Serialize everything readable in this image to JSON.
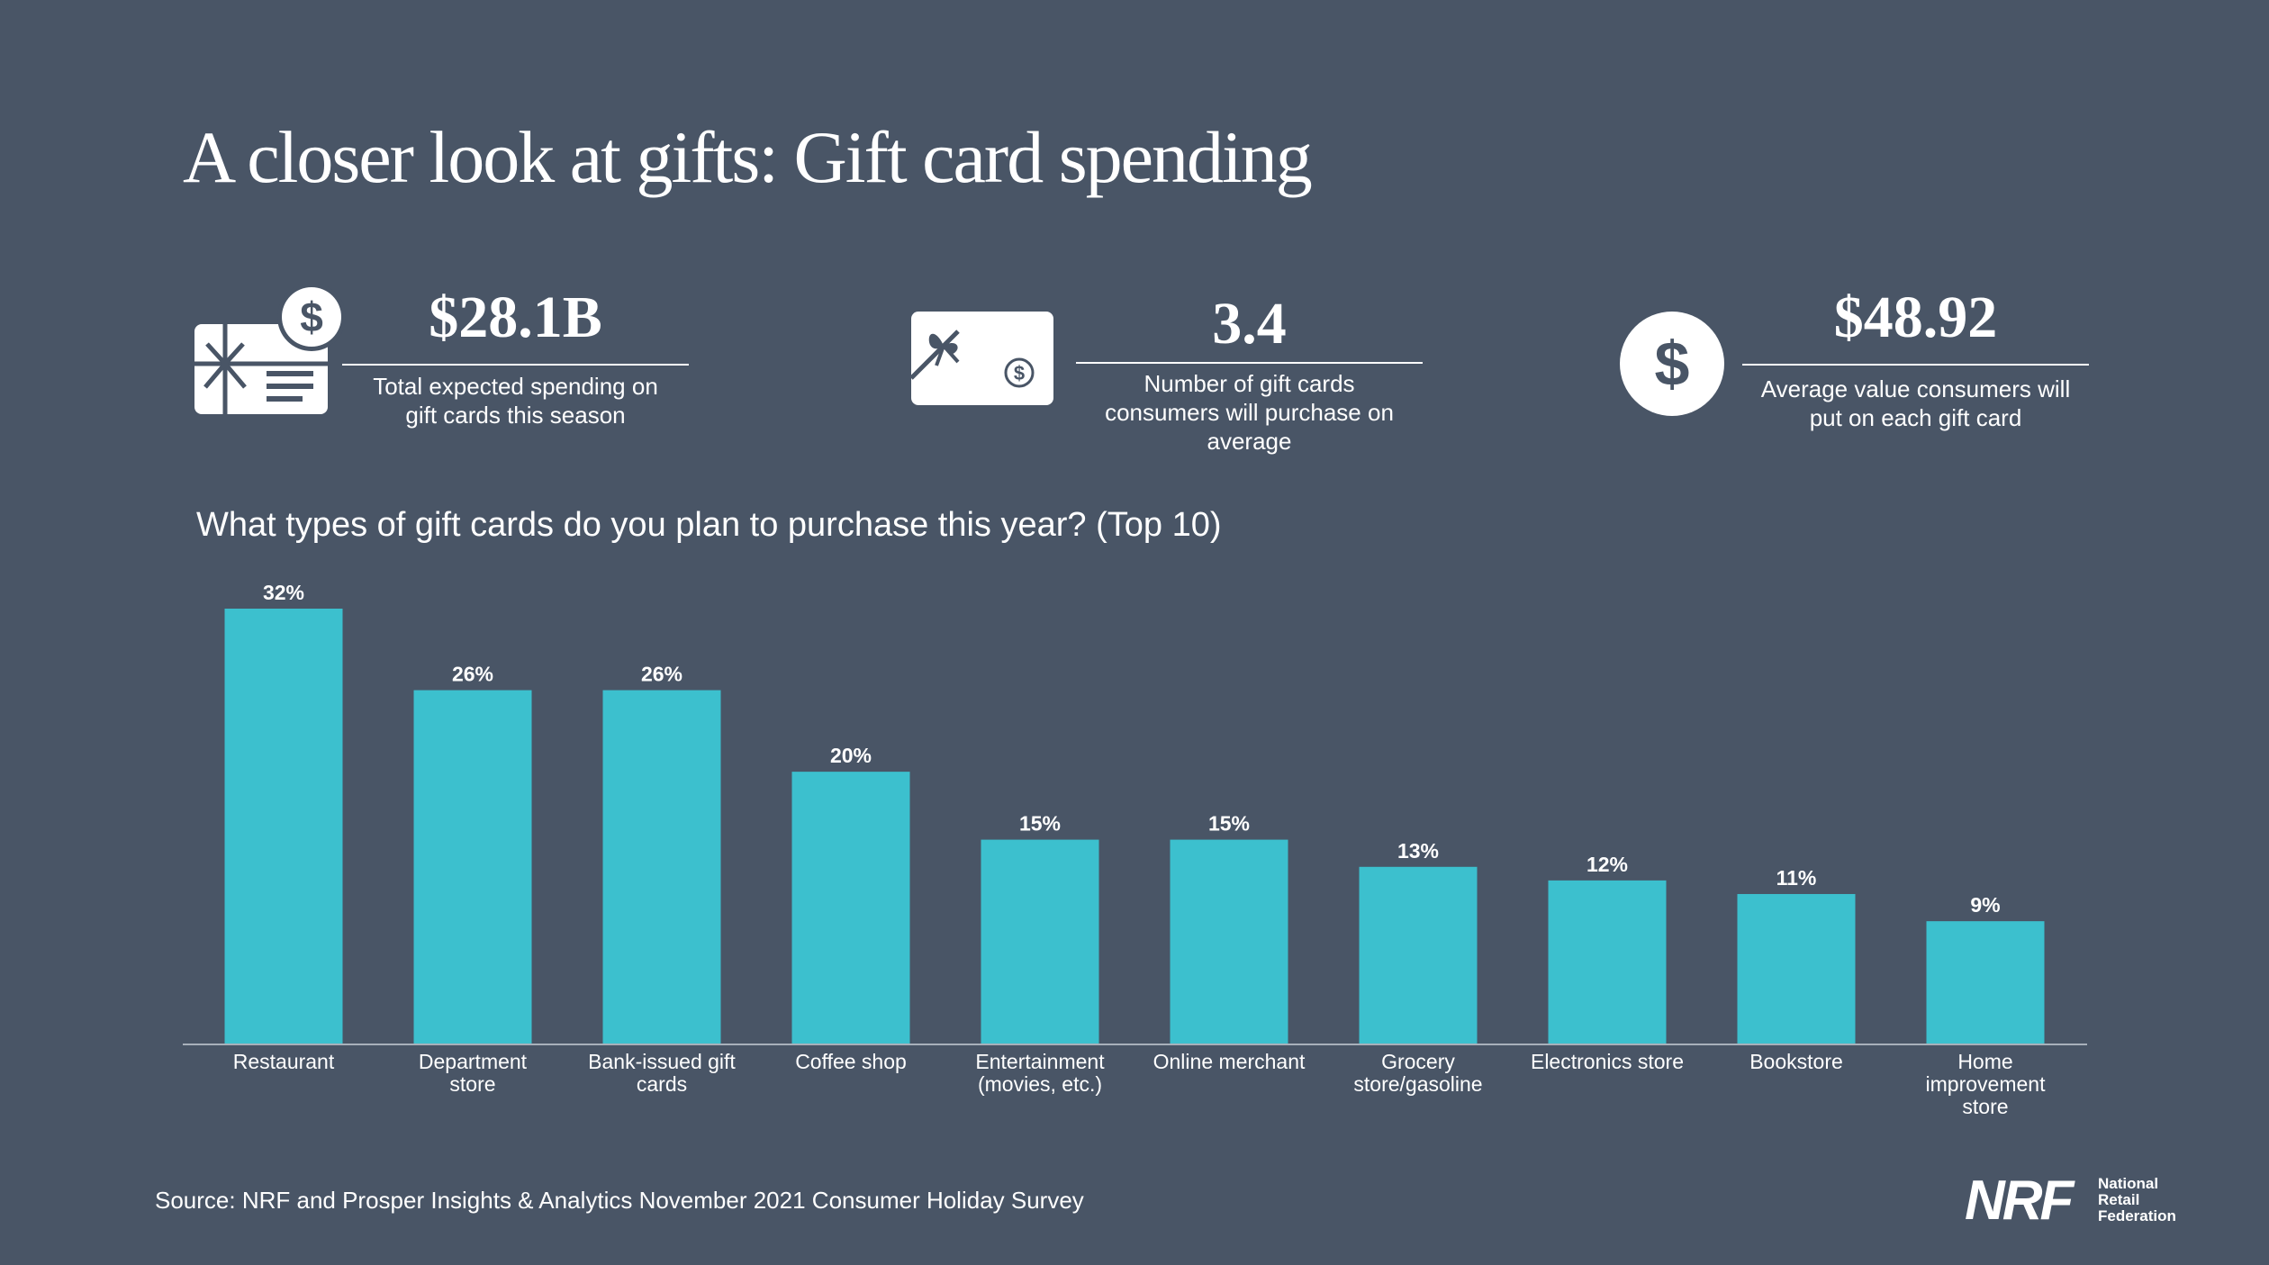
{
  "title": "A closer look at gifts: Gift card spending",
  "stats": [
    {
      "value": "$28.1B",
      "description_lines": [
        "Total expected spending on",
        "gift cards this season"
      ],
      "icon": "gift-card-dollar-icon"
    },
    {
      "value": "3.4",
      "description_lines": [
        "Number of gift cards",
        "consumers will purchase on",
        "average"
      ],
      "icon": "gift-card-bow-icon"
    },
    {
      "value": "$48.92",
      "description_lines": [
        "Average value consumers will",
        "put on each gift card"
      ],
      "icon": "dollar-circle-icon"
    }
  ],
  "chart_data": {
    "type": "bar",
    "title": "What types of gift cards do you plan to purchase this year? (Top 10)",
    "categories": [
      "Restaurant",
      "Department store",
      "Bank-issued gift cards",
      "Coffee shop",
      "Entertainment (movies, etc.)",
      "Online merchant",
      "Grocery store/gasoline",
      "Electronics store",
      "Bookstore",
      "Home improvement store"
    ],
    "category_lines": [
      [
        "Restaurant"
      ],
      [
        "Department",
        "store"
      ],
      [
        "Bank-issued gift",
        "cards"
      ],
      [
        "Coffee shop"
      ],
      [
        "Entertainment",
        "(movies, etc.)"
      ],
      [
        "Online merchant"
      ],
      [
        "Grocery",
        "store/gasoline"
      ],
      [
        "Electronics store"
      ],
      [
        "Bookstore"
      ],
      [
        "Home",
        "improvement",
        "store"
      ]
    ],
    "values": [
      32,
      26,
      26,
      20,
      15,
      15,
      13,
      12,
      11,
      9
    ],
    "value_labels": [
      "32%",
      "26%",
      "26%",
      "20%",
      "15%",
      "15%",
      "13%",
      "12%",
      "11%",
      "9%"
    ],
    "ylim": [
      0,
      32
    ],
    "grid": false,
    "bar_color": "#3cc0ce",
    "axis_color": "#a8b0ba"
  },
  "source": "Source: NRF and Prosper Insights & Analytics November 2021 Consumer Holiday Survey",
  "logo": {
    "mark": "NRF",
    "lines": [
      "National",
      "Retail",
      "Federation"
    ]
  },
  "colors": {
    "background": "#495566",
    "accent": "#3cc0ce",
    "text": "#ffffff"
  }
}
